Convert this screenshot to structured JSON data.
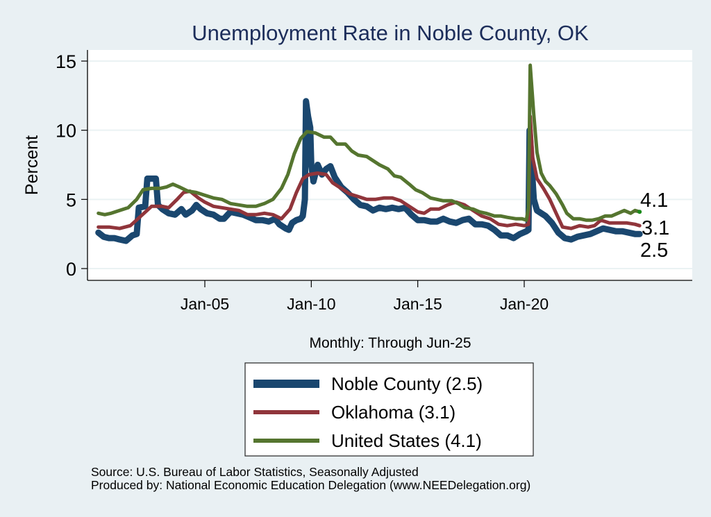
{
  "chart_data": {
    "type": "line",
    "title": "Unemployment Rate in Noble  County, OK",
    "xlabel": "Monthly: Through Jun-25",
    "ylabel": "Percent",
    "ylim": [
      -0.8,
      15.8
    ],
    "xlim": [
      1999.5,
      2028.0
    ],
    "yticks": [
      0,
      5,
      10,
      15
    ],
    "ytick_labels": [
      "0",
      "5",
      "10",
      "15"
    ],
    "xticks": [
      2005,
      2010,
      2015,
      2020
    ],
    "xtick_labels": [
      "Jan-05",
      "Jan-10",
      "Jan-15",
      "Jan-20"
    ],
    "grid": true,
    "legend_position": "bottom",
    "series": [
      {
        "name": "Noble  County",
        "legend_label": "Noble  County (2.5)",
        "color": "#1a476f",
        "last_value_label": "2.5",
        "points": [
          [
            2000.0,
            2.6
          ],
          [
            2000.25,
            2.3
          ],
          [
            2000.5,
            2.2
          ],
          [
            2000.75,
            2.2
          ],
          [
            2001.0,
            2.1
          ],
          [
            2001.3,
            2.0
          ],
          [
            2001.6,
            2.4
          ],
          [
            2001.8,
            2.5
          ],
          [
            2001.9,
            4.4
          ],
          [
            2002.2,
            4.5
          ],
          [
            2002.3,
            6.5
          ],
          [
            2002.5,
            6.5
          ],
          [
            2002.7,
            6.5
          ],
          [
            2002.8,
            4.6
          ],
          [
            2003.0,
            4.3
          ],
          [
            2003.3,
            4.0
          ],
          [
            2003.6,
            3.9
          ],
          [
            2003.9,
            4.3
          ],
          [
            2004.1,
            3.9
          ],
          [
            2004.4,
            4.2
          ],
          [
            2004.6,
            4.6
          ],
          [
            2004.8,
            4.3
          ],
          [
            2005.1,
            4.0
          ],
          [
            2005.4,
            3.9
          ],
          [
            2005.7,
            3.6
          ],
          [
            2005.9,
            3.6
          ],
          [
            2006.2,
            4.1
          ],
          [
            2006.5,
            4.0
          ],
          [
            2006.8,
            3.9
          ],
          [
            2007.1,
            3.7
          ],
          [
            2007.4,
            3.5
          ],
          [
            2007.7,
            3.5
          ],
          [
            2008.0,
            3.4
          ],
          [
            2008.3,
            3.6
          ],
          [
            2008.5,
            3.2
          ],
          [
            2008.8,
            2.9
          ],
          [
            2008.95,
            2.8
          ],
          [
            2009.1,
            3.3
          ],
          [
            2009.3,
            3.5
          ],
          [
            2009.5,
            3.6
          ],
          [
            2009.6,
            3.8
          ],
          [
            2009.7,
            5.0
          ],
          [
            2009.75,
            12.1
          ],
          [
            2009.85,
            11.0
          ],
          [
            2009.95,
            10.2
          ],
          [
            2010.0,
            7.5
          ],
          [
            2010.1,
            6.3
          ],
          [
            2010.3,
            7.5
          ],
          [
            2010.5,
            6.8
          ],
          [
            2010.7,
            7.2
          ],
          [
            2010.9,
            7.4
          ],
          [
            2011.1,
            6.6
          ],
          [
            2011.4,
            5.9
          ],
          [
            2011.7,
            5.5
          ],
          [
            2012.0,
            5.0
          ],
          [
            2012.3,
            4.6
          ],
          [
            2012.6,
            4.5
          ],
          [
            2012.9,
            4.2
          ],
          [
            2013.2,
            4.4
          ],
          [
            2013.5,
            4.3
          ],
          [
            2013.8,
            4.4
          ],
          [
            2014.1,
            4.3
          ],
          [
            2014.4,
            4.4
          ],
          [
            2014.7,
            3.9
          ],
          [
            2015.0,
            3.5
          ],
          [
            2015.3,
            3.5
          ],
          [
            2015.6,
            3.4
          ],
          [
            2015.9,
            3.4
          ],
          [
            2016.2,
            3.6
          ],
          [
            2016.5,
            3.4
          ],
          [
            2016.8,
            3.3
          ],
          [
            2017.1,
            3.5
          ],
          [
            2017.4,
            3.6
          ],
          [
            2017.7,
            3.2
          ],
          [
            2018.0,
            3.2
          ],
          [
            2018.3,
            3.1
          ],
          [
            2018.6,
            2.8
          ],
          [
            2018.9,
            2.4
          ],
          [
            2019.2,
            2.4
          ],
          [
            2019.5,
            2.2
          ],
          [
            2019.8,
            2.5
          ],
          [
            2019.95,
            2.6
          ],
          [
            2020.1,
            2.7
          ],
          [
            2020.2,
            2.8
          ],
          [
            2020.25,
            10.0
          ],
          [
            2020.35,
            7.5
          ],
          [
            2020.45,
            5.0
          ],
          [
            2020.6,
            4.2
          ],
          [
            2020.8,
            4.0
          ],
          [
            2021.0,
            3.8
          ],
          [
            2021.3,
            3.3
          ],
          [
            2021.6,
            2.6
          ],
          [
            2021.9,
            2.2
          ],
          [
            2022.2,
            2.1
          ],
          [
            2022.5,
            2.3
          ],
          [
            2022.8,
            2.4
          ],
          [
            2023.1,
            2.5
          ],
          [
            2023.4,
            2.7
          ],
          [
            2023.7,
            2.9
          ],
          [
            2024.0,
            2.8
          ],
          [
            2024.3,
            2.7
          ],
          [
            2024.6,
            2.7
          ],
          [
            2024.9,
            2.6
          ],
          [
            2025.2,
            2.5
          ],
          [
            2025.42,
            2.5
          ]
        ]
      },
      {
        "name": "Oklahoma",
        "legend_label": "Oklahoma (3.1)",
        "color": "#90353b",
        "last_value_label": "3.1",
        "points": [
          [
            2000.0,
            3.0
          ],
          [
            2000.5,
            3.0
          ],
          [
            2001.0,
            2.9
          ],
          [
            2001.5,
            3.1
          ],
          [
            2002.0,
            3.8
          ],
          [
            2002.5,
            4.5
          ],
          [
            2003.0,
            4.5
          ],
          [
            2003.3,
            4.4
          ],
          [
            2003.7,
            5.0
          ],
          [
            2004.0,
            5.5
          ],
          [
            2004.3,
            5.6
          ],
          [
            2004.7,
            5.1
          ],
          [
            2005.0,
            4.8
          ],
          [
            2005.4,
            4.5
          ],
          [
            2005.8,
            4.4
          ],
          [
            2006.2,
            4.3
          ],
          [
            2006.6,
            4.2
          ],
          [
            2007.0,
            3.9
          ],
          [
            2007.4,
            3.9
          ],
          [
            2007.8,
            4.0
          ],
          [
            2008.2,
            3.9
          ],
          [
            2008.6,
            3.6
          ],
          [
            2009.0,
            4.3
          ],
          [
            2009.3,
            5.5
          ],
          [
            2009.6,
            6.5
          ],
          [
            2009.9,
            6.8
          ],
          [
            2010.3,
            6.9
          ],
          [
            2010.7,
            6.8
          ],
          [
            2011.0,
            6.2
          ],
          [
            2011.4,
            5.8
          ],
          [
            2011.8,
            5.4
          ],
          [
            2012.2,
            5.2
          ],
          [
            2012.6,
            5.0
          ],
          [
            2013.0,
            5.0
          ],
          [
            2013.4,
            5.1
          ],
          [
            2013.8,
            5.1
          ],
          [
            2014.2,
            4.9
          ],
          [
            2014.6,
            4.5
          ],
          [
            2015.0,
            4.1
          ],
          [
            2015.3,
            4.0
          ],
          [
            2015.6,
            4.3
          ],
          [
            2016.0,
            4.3
          ],
          [
            2016.4,
            4.6
          ],
          [
            2016.8,
            4.8
          ],
          [
            2017.2,
            4.6
          ],
          [
            2017.6,
            4.2
          ],
          [
            2018.0,
            3.8
          ],
          [
            2018.4,
            3.6
          ],
          [
            2018.8,
            3.2
          ],
          [
            2019.2,
            3.1
          ],
          [
            2019.6,
            3.2
          ],
          [
            2020.0,
            3.1
          ],
          [
            2020.2,
            3.2
          ],
          [
            2020.28,
            11.0
          ],
          [
            2020.4,
            8.0
          ],
          [
            2020.6,
            6.5
          ],
          [
            2020.9,
            5.8
          ],
          [
            2021.2,
            5.0
          ],
          [
            2021.5,
            4.0
          ],
          [
            2021.8,
            3.0
          ],
          [
            2022.2,
            2.9
          ],
          [
            2022.6,
            3.1
          ],
          [
            2023.0,
            3.0
          ],
          [
            2023.3,
            3.1
          ],
          [
            2023.6,
            3.5
          ],
          [
            2024.0,
            3.3
          ],
          [
            2024.4,
            3.3
          ],
          [
            2024.8,
            3.3
          ],
          [
            2025.2,
            3.2
          ],
          [
            2025.42,
            3.1
          ]
        ]
      },
      {
        "name": "United States",
        "legend_label": "United States (4.1)",
        "color": "#55752f",
        "last_value_label": "4.1",
        "points": [
          [
            2000.0,
            4.0
          ],
          [
            2000.3,
            3.9
          ],
          [
            2000.6,
            4.0
          ],
          [
            2001.0,
            4.2
          ],
          [
            2001.4,
            4.4
          ],
          [
            2001.8,
            5.0
          ],
          [
            2002.1,
            5.7
          ],
          [
            2002.5,
            5.8
          ],
          [
            2002.9,
            5.8
          ],
          [
            2003.2,
            5.9
          ],
          [
            2003.5,
            6.1
          ],
          [
            2003.8,
            5.9
          ],
          [
            2004.2,
            5.6
          ],
          [
            2004.6,
            5.5
          ],
          [
            2005.0,
            5.3
          ],
          [
            2005.4,
            5.1
          ],
          [
            2005.8,
            5.0
          ],
          [
            2006.2,
            4.7
          ],
          [
            2006.6,
            4.6
          ],
          [
            2007.0,
            4.5
          ],
          [
            2007.4,
            4.5
          ],
          [
            2007.8,
            4.7
          ],
          [
            2008.2,
            5.0
          ],
          [
            2008.6,
            5.8
          ],
          [
            2008.9,
            6.8
          ],
          [
            2009.2,
            8.3
          ],
          [
            2009.5,
            9.4
          ],
          [
            2009.8,
            9.9
          ],
          [
            2010.2,
            9.8
          ],
          [
            2010.6,
            9.5
          ],
          [
            2010.9,
            9.5
          ],
          [
            2011.2,
            9.0
          ],
          [
            2011.6,
            9.0
          ],
          [
            2011.9,
            8.5
          ],
          [
            2012.2,
            8.2
          ],
          [
            2012.6,
            8.1
          ],
          [
            2012.9,
            7.8
          ],
          [
            2013.2,
            7.5
          ],
          [
            2013.6,
            7.2
          ],
          [
            2013.9,
            6.7
          ],
          [
            2014.2,
            6.6
          ],
          [
            2014.6,
            6.1
          ],
          [
            2014.9,
            5.7
          ],
          [
            2015.2,
            5.5
          ],
          [
            2015.6,
            5.1
          ],
          [
            2015.9,
            5.0
          ],
          [
            2016.2,
            4.9
          ],
          [
            2016.6,
            4.9
          ],
          [
            2016.9,
            4.7
          ],
          [
            2017.2,
            4.4
          ],
          [
            2017.6,
            4.3
          ],
          [
            2017.9,
            4.1
          ],
          [
            2018.2,
            4.0
          ],
          [
            2018.6,
            3.8
          ],
          [
            2018.9,
            3.8
          ],
          [
            2019.2,
            3.7
          ],
          [
            2019.6,
            3.6
          ],
          [
            2019.9,
            3.6
          ],
          [
            2020.1,
            3.5
          ],
          [
            2020.2,
            4.4
          ],
          [
            2020.28,
            14.7
          ],
          [
            2020.45,
            11.1
          ],
          [
            2020.6,
            8.4
          ],
          [
            2020.8,
            6.9
          ],
          [
            2021.0,
            6.3
          ],
          [
            2021.2,
            6.0
          ],
          [
            2021.5,
            5.4
          ],
          [
            2021.8,
            4.6
          ],
          [
            2022.0,
            4.0
          ],
          [
            2022.3,
            3.6
          ],
          [
            2022.6,
            3.6
          ],
          [
            2022.9,
            3.5
          ],
          [
            2023.2,
            3.5
          ],
          [
            2023.5,
            3.6
          ],
          [
            2023.8,
            3.8
          ],
          [
            2024.1,
            3.8
          ],
          [
            2024.4,
            4.0
          ],
          [
            2024.7,
            4.2
          ],
          [
            2025.0,
            4.0
          ],
          [
            2025.2,
            4.2
          ],
          [
            2025.42,
            4.1
          ]
        ]
      }
    ]
  },
  "footer": {
    "source": "Source: U.S. Bureau of Labor Statistics, Seasonally Adjusted",
    "produced_by": "Produced by: National Economic Education Delegation (www.NEEDelegation.org)"
  }
}
